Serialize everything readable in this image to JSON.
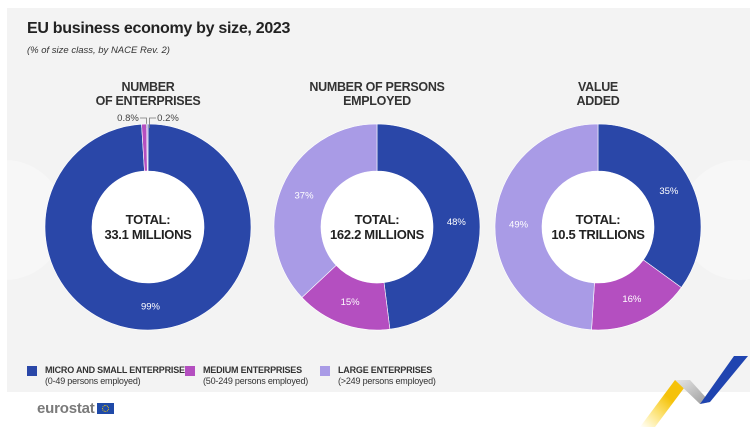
{
  "title": "EU business economy by size, 2023",
  "subtitle": "(% of size class, by NACE Rev. 2)",
  "colors": {
    "micro_small": "#2a47a8",
    "medium": "#b44fc0",
    "large": "#a99be6",
    "panel_bg": "#f3f3f3"
  },
  "chart_data": [
    {
      "type": "pie",
      "variant": "donut",
      "title_lines": [
        "NUMBER",
        "OF ENTERPRISES"
      ],
      "center_lines": [
        "TOTAL:",
        "33.1 MILLIONS"
      ],
      "categories": [
        "Micro and small enterprises",
        "Medium enterprises",
        "Large enterprises"
      ],
      "values": [
        99,
        0.8,
        0.2
      ],
      "labels": [
        "99%",
        "0.8%",
        "0.2%"
      ]
    },
    {
      "type": "pie",
      "variant": "donut",
      "title_lines": [
        "NUMBER OF PERSONS",
        "EMPLOYED"
      ],
      "center_lines": [
        "TOTAL:",
        "162.2 MILLIONS"
      ],
      "categories": [
        "Micro and small enterprises",
        "Medium enterprises",
        "Large enterprises"
      ],
      "values": [
        48,
        15,
        37
      ],
      "labels": [
        "48%",
        "15%",
        "37%"
      ]
    },
    {
      "type": "pie",
      "variant": "donut",
      "title_lines": [
        "VALUE",
        "ADDED"
      ],
      "center_lines": [
        "TOTAL:",
        "10.5 TRILLIONS"
      ],
      "categories": [
        "Micro and small enterprises",
        "Medium enterprises",
        "Large enterprises"
      ],
      "values": [
        35,
        16,
        49
      ],
      "labels": [
        "35%",
        "16%",
        "49%"
      ]
    }
  ],
  "legend": [
    {
      "title": "MICRO AND SMALL ENTERPRISES",
      "sub": "(0-49 persons employed)",
      "color_key": "micro_small"
    },
    {
      "title": "MEDIUM ENTERPRISES",
      "sub": "(50-249 persons employed)",
      "color_key": "medium"
    },
    {
      "title": "LARGE ENTERPRISES",
      "sub": "(>249 persons employed)",
      "color_key": "large"
    }
  ],
  "footer": {
    "logo_text": "eurostat"
  }
}
